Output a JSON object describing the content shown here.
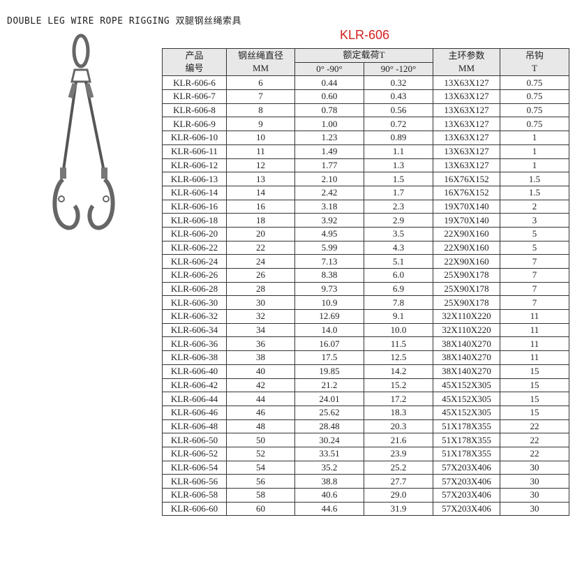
{
  "title": "DOUBLE LEG WIRE ROPE RIGGING  双腿钢丝绳索具",
  "model": "KLR-606",
  "colors": {
    "model": "#d42020",
    "header_bg": "#e8e8e8"
  },
  "header": {
    "product": "产品",
    "code": "编号",
    "rope": "钢丝绳直径",
    "rope_unit": "MM",
    "load": "额定载荷T",
    "load_a": "0° -90°",
    "load_b": "90° -120°",
    "ring": "主环参数",
    "ring_unit": "MM",
    "hook": "吊钩",
    "hook_unit": "T"
  },
  "rows": [
    [
      "KLR-606-6",
      "6",
      "0.44",
      "0.32",
      "13X63X127",
      "0.75"
    ],
    [
      "KLR-606-7",
      "7",
      "0.60",
      "0.43",
      "13X63X127",
      "0.75"
    ],
    [
      "KLR-606-8",
      "8",
      "0.78",
      "0.56",
      "13X63X127",
      "0.75"
    ],
    [
      "KLR-606-9",
      "9",
      "1.00",
      "0.72",
      "13X63X127",
      "0.75"
    ],
    [
      "KLR-606-10",
      "10",
      "1.23",
      "0.89",
      "13X63X127",
      "1"
    ],
    [
      "KLR-606-11",
      "11",
      "1.49",
      "1.1",
      "13X63X127",
      "1"
    ],
    [
      "KLR-606-12",
      "12",
      "1.77",
      "1.3",
      "13X63X127",
      "1"
    ],
    [
      "KLR-606-13",
      "13",
      "2.10",
      "1.5",
      "16X76X152",
      "1.5"
    ],
    [
      "KLR-606-14",
      "14",
      "2.42",
      "1.7",
      "16X76X152",
      "1.5"
    ],
    [
      "KLR-606-16",
      "16",
      "3.18",
      "2.3",
      "19X70X140",
      "2"
    ],
    [
      "KLR-606-18",
      "18",
      "3.92",
      "2.9",
      "19X70X140",
      "3"
    ],
    [
      "KLR-606-20",
      "20",
      "4.95",
      "3.5",
      "22X90X160",
      "5"
    ],
    [
      "KLR-606-22",
      "22",
      "5.99",
      "4.3",
      "22X90X160",
      "5"
    ],
    [
      "KLR-606-24",
      "24",
      "7.13",
      "5.1",
      "22X90X160",
      "7"
    ],
    [
      "KLR-606-26",
      "26",
      "8.38",
      "6.0",
      "25X90X178",
      "7"
    ],
    [
      "KLR-606-28",
      "28",
      "9.73",
      "6.9",
      "25X90X178",
      "7"
    ],
    [
      "KLR-606-30",
      "30",
      "10.9",
      "7.8",
      "25X90X178",
      "7"
    ],
    [
      "KLR-606-32",
      "32",
      "12.69",
      "9.1",
      "32X110X220",
      "11"
    ],
    [
      "KLR-606-34",
      "34",
      "14.0",
      "10.0",
      "32X110X220",
      "11"
    ],
    [
      "KLR-606-36",
      "36",
      "16.07",
      "11.5",
      "38X140X270",
      "11"
    ],
    [
      "KLR-606-38",
      "38",
      "17.5",
      "12.5",
      "38X140X270",
      "11"
    ],
    [
      "KLR-606-40",
      "40",
      "19.85",
      "14.2",
      "38X140X270",
      "15"
    ],
    [
      "KLR-606-42",
      "42",
      "21.2",
      "15.2",
      "45X152X305",
      "15"
    ],
    [
      "KLR-606-44",
      "44",
      "24.01",
      "17.2",
      "45X152X305",
      "15"
    ],
    [
      "KLR-606-46",
      "46",
      "25.62",
      "18.3",
      "45X152X305",
      "15"
    ],
    [
      "KLR-606-48",
      "48",
      "28.48",
      "20.3",
      "51X178X355",
      "22"
    ],
    [
      "KLR-606-50",
      "50",
      "30.24",
      "21.6",
      "51X178X355",
      "22"
    ],
    [
      "KLR-606-52",
      "52",
      "33.51",
      "23.9",
      "51X178X355",
      "22"
    ],
    [
      "KLR-606-54",
      "54",
      "35.2",
      "25.2",
      "57X203X406",
      "30"
    ],
    [
      "KLR-606-56",
      "56",
      "38.8",
      "27.7",
      "57X203X406",
      "30"
    ],
    [
      "KLR-606-58",
      "58",
      "40.6",
      "29.0",
      "57X203X406",
      "30"
    ],
    [
      "KLR-606-60",
      "60",
      "44.6",
      "31.9",
      "57X203X406",
      "30"
    ]
  ]
}
